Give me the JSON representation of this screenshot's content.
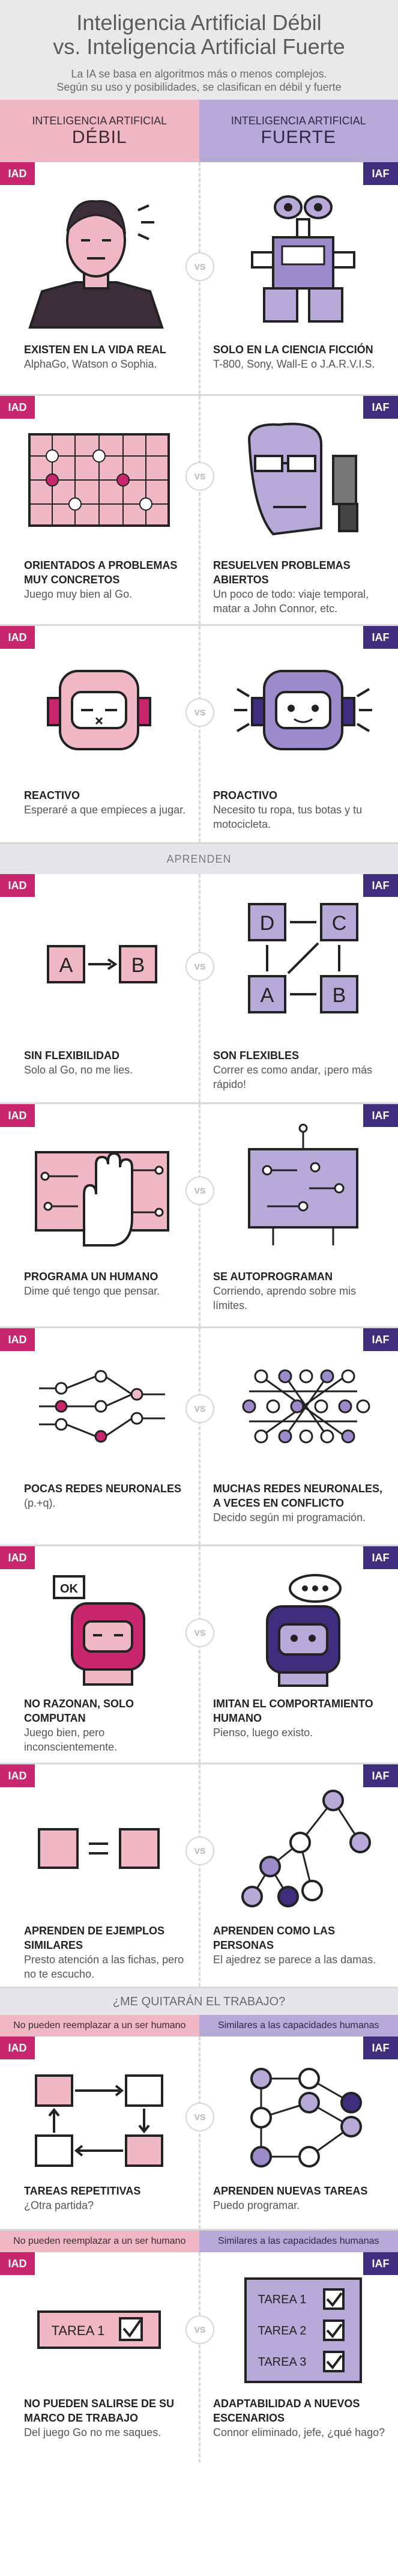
{
  "header": {
    "title_line1": "Inteligencia Artificial Débil",
    "title_line2": "vs. Inteligencia Artificial Fuerte",
    "subtitle_line1": "La IA se basa en algoritmos más o menos complejos.",
    "subtitle_line2": "Según su uso y posibilidades, se clasifican en débil y fuerte"
  },
  "columns": {
    "weak_small": "INTELIGENCIA ARTIFICIAL",
    "weak_big": "DÉBIL",
    "strong_small": "INTELIGENCIA ARTIFICIAL",
    "strong_big": "FUERTE"
  },
  "tags": {
    "weak": "IAD",
    "strong": "IAF",
    "vs": "VS"
  },
  "bands": {
    "learn": "APRENDEN",
    "job": "¿ME QUITARÁN EL TRABAJO?"
  },
  "subbands": {
    "weak": "No pueden reemplazar a un ser humano",
    "strong": "Similares a las capacidades humanas"
  },
  "sections": [
    {
      "weak_title": "EXISTEN EN LA VIDA REAL",
      "weak_sub": "AlphaGo, Watson o Sophia.",
      "strong_title": "SOLO EN LA CIENCIA FICCIÓN",
      "strong_sub": "T-800, Sony, Wall-E o J.A.R.V.I.S."
    },
    {
      "weak_title": "ORIENTADOS A PROBLEMAS MUY CONCRETOS",
      "weak_sub": "Juego muy bien al Go.",
      "strong_title": "RESUELVEN PROBLEMAS ABIERTOS",
      "strong_sub": "Un poco de todo: viaje temporal, matar a John Connor, etc."
    },
    {
      "weak_title": "REACTIVO",
      "weak_sub": "Esperaré a que empieces a jugar.",
      "strong_title": "PROACTIVO",
      "strong_sub": "Necesito tu ropa, tus botas y tu motocicleta."
    },
    {
      "weak_title": "SIN FLEXIBILIDAD",
      "weak_sub": "Solo al Go, no me lies.",
      "strong_title": "SON FLEXIBLES",
      "strong_sub": "Correr es como andar, ¡pero más rápido!"
    },
    {
      "weak_title": "PROGRAMA UN HUMANO",
      "weak_sub": "Dime qué tengo que pensar.",
      "strong_title": "SE AUTOPROGRAMAN",
      "strong_sub": "Corriendo, aprendo sobre mis límites."
    },
    {
      "weak_title": "POCAS REDES NEURONALES",
      "weak_sub": "(p.+q).",
      "strong_title": "MUCHAS REDES NEURONALES, A VECES EN CONFLICTO",
      "strong_sub": "Decido según mi programación."
    },
    {
      "weak_title": "NO RAZONAN, SOLO COMPUTAN",
      "weak_sub": "Juego bien, pero inconscientemente.",
      "strong_title": "IMITAN EL COMPORTAMIENTO HUMANO",
      "strong_sub": "Pienso, luego existo."
    },
    {
      "weak_title": "APRENDEN DE EJEMPLOS SIMILARES",
      "weak_sub": "Presto atención a las fichas, pero no te escucho.",
      "strong_title": "APRENDEN COMO LAS PERSONAS",
      "strong_sub": "El ajedrez se parece a las damas."
    },
    {
      "weak_title": "TAREAS REPETITIVAS",
      "weak_sub": "¿Otra partida?",
      "strong_title": "APRENDEN NUEVAS TAREAS",
      "strong_sub": "Puedo programar."
    },
    {
      "weak_title": "NO PUEDEN SALIRSE DE SU MARCO DE TRABAJO",
      "weak_sub": "Del juego Go no me saques.",
      "strong_title": "ADAPTABILIDAD A NUEVOS ESCENARIOS",
      "strong_sub": "Connor eliminado, jefe, ¿qué hago?"
    }
  ],
  "icon_labels": {
    "ok": "OK",
    "tarea1": "TAREA 1",
    "tarea2": "TAREA 2",
    "tarea3": "TAREA 3",
    "a": "A",
    "b": "B",
    "c": "C",
    "d": "D"
  },
  "colors": {
    "weak": "#c8266d",
    "strong": "#3f2d7d",
    "weak_light": "#f0b7c5",
    "strong_light": "#b7a9d8"
  }
}
